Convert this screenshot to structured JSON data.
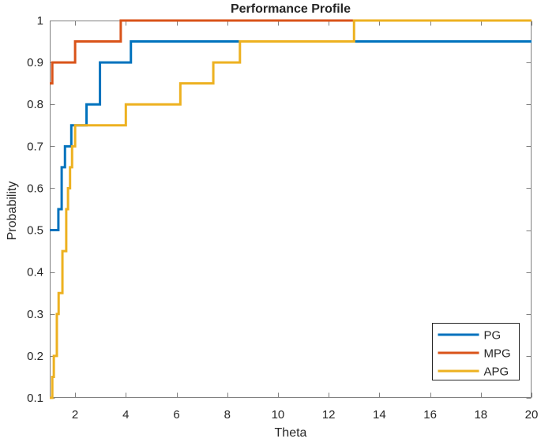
{
  "figure": {
    "background": "#ffffff"
  },
  "chart_data": {
    "type": "line",
    "subtype": "step",
    "title": "Performance Profile",
    "xlabel": "Theta",
    "ylabel": "Probability",
    "xlim": [
      1,
      20
    ],
    "ylim": [
      0.1,
      1
    ],
    "grid": false,
    "axis_color": "#808080",
    "text_color": "#262626",
    "tick_direction": "in",
    "xticks": {
      "values": [
        2,
        4,
        6,
        8,
        10,
        12,
        14,
        16,
        18,
        20
      ],
      "labels": [
        "2",
        "4",
        "6",
        "8",
        "10",
        "12",
        "14",
        "16",
        "18",
        "20"
      ]
    },
    "yticks": {
      "values": [
        0.1,
        0.2,
        0.3,
        0.4,
        0.5,
        0.6,
        0.7,
        0.8,
        0.9,
        1
      ],
      "labels": [
        "0.1",
        "0.2",
        "0.3",
        "0.4",
        "0.5",
        "0.6",
        "0.7",
        "0.8",
        "0.9",
        "1"
      ]
    },
    "legend": {
      "position": "bottom-right",
      "background": "#ffffff",
      "border_color": "#262626",
      "entries": [
        "PG",
        "MPG",
        "APG"
      ]
    },
    "series": [
      {
        "name": "PG",
        "color": "#0072BD",
        "points": [
          [
            1,
            0.5
          ],
          [
            1.34,
            0.55
          ],
          [
            1.47,
            0.65
          ],
          [
            1.6,
            0.7
          ],
          [
            1.85,
            0.75
          ],
          [
            2.45,
            0.8
          ],
          [
            2.98,
            0.9
          ],
          [
            4.2,
            0.95
          ],
          [
            20,
            0.95
          ]
        ]
      },
      {
        "name": "MPG",
        "color": "#D95319",
        "points": [
          [
            1,
            0.85
          ],
          [
            1.1,
            0.9
          ],
          [
            2.0,
            0.95
          ],
          [
            3.8,
            1.0
          ],
          [
            20,
            1.0
          ]
        ]
      },
      {
        "name": "APG",
        "color": "#EDB120",
        "points": [
          [
            1,
            0.1
          ],
          [
            1.1,
            0.15
          ],
          [
            1.16,
            0.2
          ],
          [
            1.28,
            0.3
          ],
          [
            1.35,
            0.35
          ],
          [
            1.5,
            0.45
          ],
          [
            1.65,
            0.55
          ],
          [
            1.72,
            0.6
          ],
          [
            1.8,
            0.65
          ],
          [
            1.88,
            0.7
          ],
          [
            2.0,
            0.75
          ],
          [
            4.0,
            0.8
          ],
          [
            6.15,
            0.85
          ],
          [
            7.45,
            0.9
          ],
          [
            8.5,
            0.95
          ],
          [
            13.0,
            1.0
          ],
          [
            20,
            1.0
          ]
        ]
      }
    ]
  }
}
